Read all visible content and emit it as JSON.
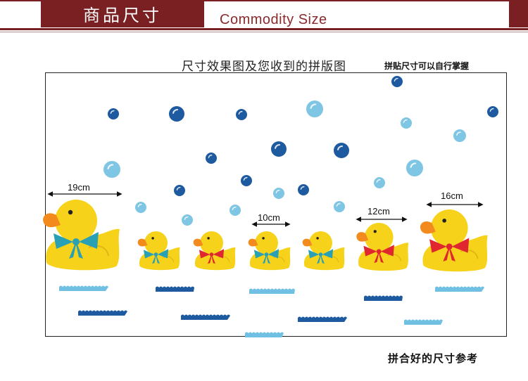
{
  "header": {
    "title_cn": "商品尺寸",
    "title_en": "Commodity Size",
    "accent_color": "#7a1f22"
  },
  "subtitle": "尺寸效果图及您收到的拼版图",
  "note": "拼贴尺寸可以自行掌握",
  "footer": "拼合好的尺寸参考",
  "dimensions": {
    "d1": "19cm",
    "d2": "10cm",
    "d3": "12cm",
    "d4": "16cm"
  },
  "colors": {
    "duck_body": "#f6d21b",
    "duck_beak": "#f28a1e",
    "bow_teal": "#2aa0b4",
    "bow_red": "#e0262e",
    "bubble_dark": "#1d5aa0",
    "bubble_light": "#7fc6e4",
    "wave_light": "#6fc0e2",
    "wave_dark": "#1d5aa0"
  }
}
